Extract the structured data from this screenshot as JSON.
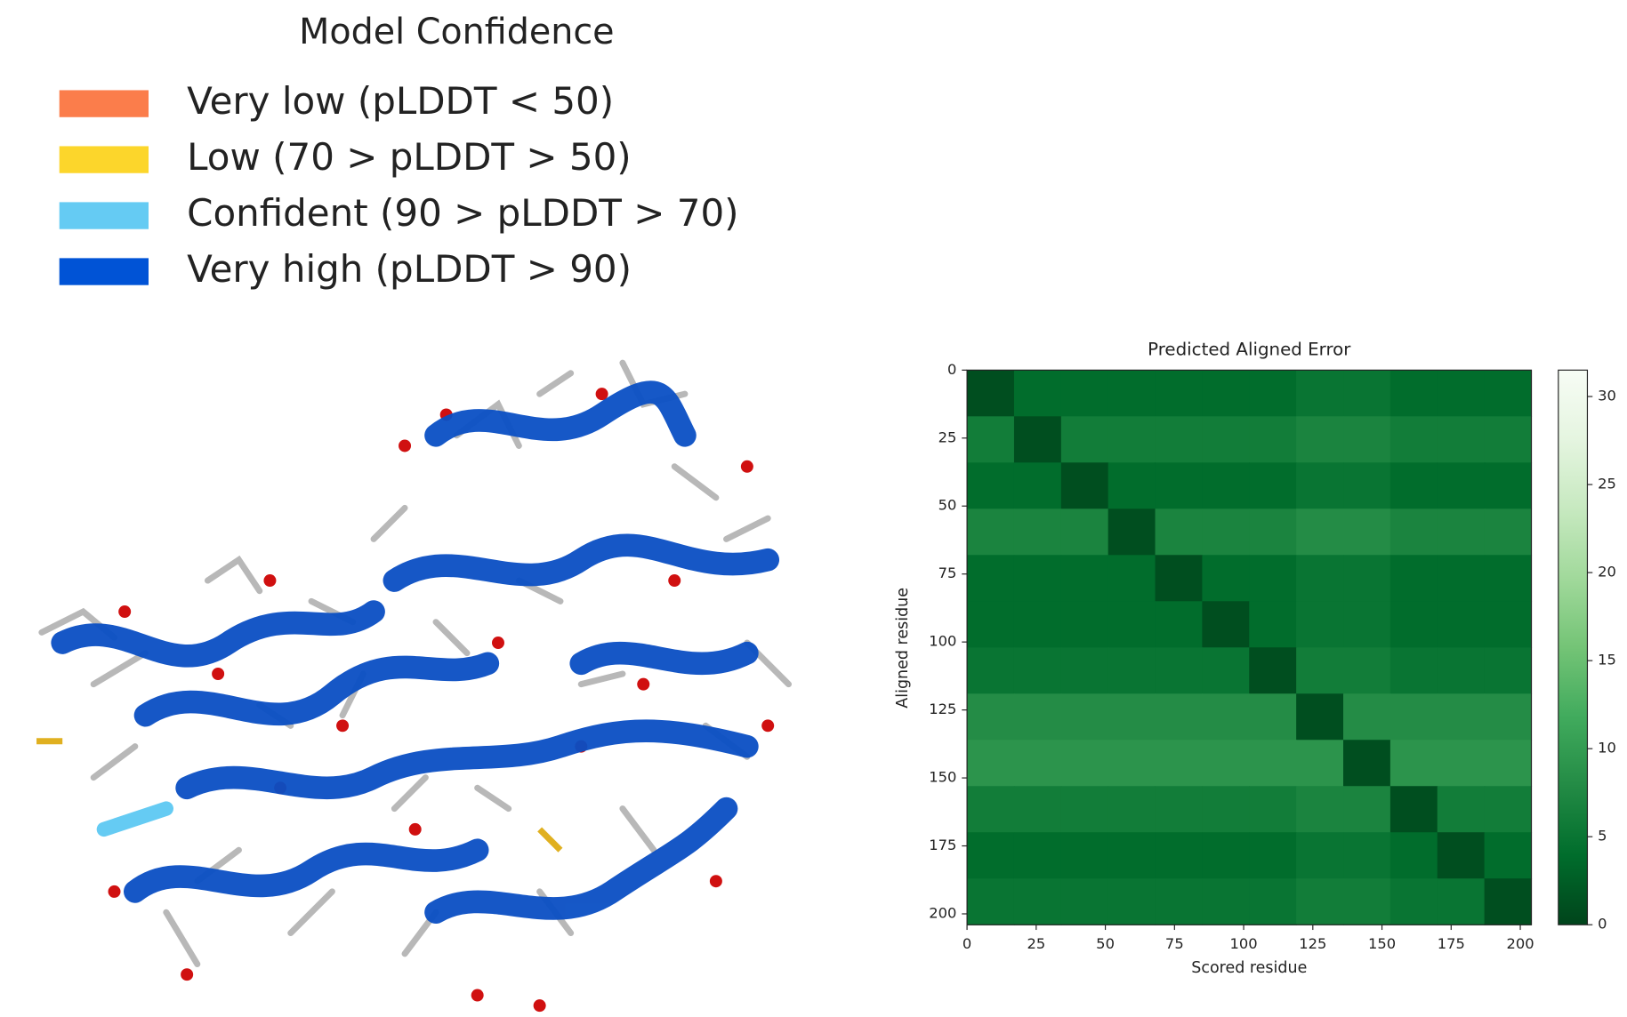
{
  "legend": {
    "title": "Model Confidence",
    "items": [
      {
        "label": "Very low (pLDDT < 50)",
        "color": "#fb7d4b"
      },
      {
        "label": "Low (70 > pLDDT > 50)",
        "color": "#fcd62b"
      },
      {
        "label": "Confident (90 > pLDDT > 70)",
        "color": "#65cbf3"
      },
      {
        "label": "Very high (pLDDT > 90)",
        "color": "#0053d6"
      }
    ]
  },
  "chart_data": {
    "type": "heatmap",
    "title": "Predicted Aligned Error",
    "x_label": "Scored residue",
    "y_label": "Aligned residue",
    "xbins": [
      0,
      17,
      34,
      51,
      68,
      85,
      102,
      119,
      136,
      153,
      170,
      187,
      204
    ],
    "ybins": [
      0,
      17,
      34,
      51,
      68,
      85,
      102,
      119,
      136,
      153,
      170,
      187,
      204
    ],
    "values": [
      [
        1,
        4,
        4,
        4,
        4,
        4,
        4,
        5,
        5,
        4,
        4,
        4
      ],
      [
        6,
        1,
        6,
        6,
        6,
        6,
        6,
        7,
        7,
        6,
        6,
        6
      ],
      [
        4,
        4,
        1,
        4,
        4,
        4,
        4,
        5,
        5,
        4,
        4,
        4
      ],
      [
        7,
        7,
        7,
        1,
        7,
        7,
        7,
        8,
        8,
        7,
        7,
        7
      ],
      [
        4,
        4,
        4,
        4,
        1,
        4,
        4,
        5,
        5,
        4,
        4,
        4
      ],
      [
        4,
        4,
        4,
        4,
        4,
        1,
        4,
        5,
        5,
        4,
        4,
        4
      ],
      [
        5,
        5,
        5,
        5,
        5,
        5,
        1,
        6,
        6,
        5,
        5,
        5
      ],
      [
        8,
        8,
        8,
        8,
        8,
        8,
        8,
        1,
        8,
        8,
        8,
        8
      ],
      [
        9,
        9,
        9,
        9,
        9,
        9,
        9,
        9,
        1,
        9,
        9,
        9
      ],
      [
        6,
        6,
        6,
        6,
        6,
        6,
        6,
        7,
        7,
        1,
        6,
        6
      ],
      [
        4,
        4,
        4,
        4,
        4,
        4,
        4,
        5,
        5,
        4,
        1,
        4
      ],
      [
        5,
        5,
        5,
        5,
        5,
        5,
        5,
        6,
        6,
        5,
        5,
        1
      ]
    ],
    "xlim": [
      0,
      204
    ],
    "ylim": [
      0,
      204
    ],
    "xticks": [
      0,
      25,
      50,
      75,
      100,
      125,
      150,
      175,
      200
    ],
    "yticks": [
      0,
      25,
      50,
      75,
      100,
      125,
      150,
      175,
      200
    ],
    "clim": [
      0,
      31.5
    ],
    "cticks": [
      0,
      5,
      10,
      15,
      20,
      25,
      30
    ],
    "colorscale": [
      "#00441b",
      "#006d2c",
      "#238b45",
      "#41ab5d",
      "#74c476",
      "#a1d99b",
      "#c7e9c0",
      "#e5f5e0",
      "#f7fcf5"
    ]
  }
}
